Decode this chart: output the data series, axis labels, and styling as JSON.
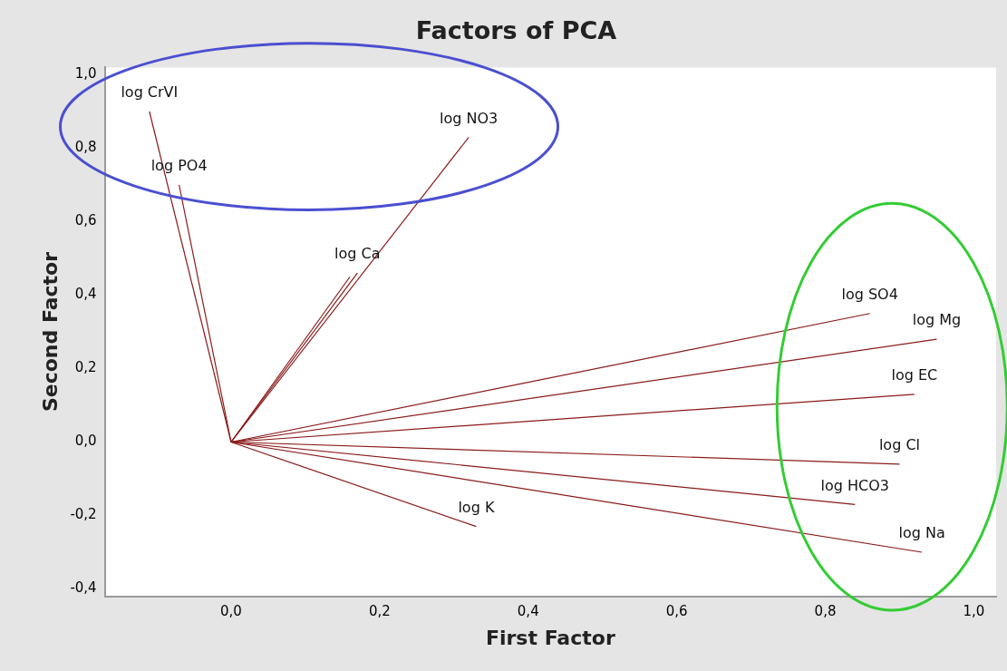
{
  "chart_data": {
    "type": "line",
    "title": "Factors of PCA",
    "xlabel": "First Factor",
    "ylabel": "Second Factor",
    "xlim": [
      -0.17,
      1.03
    ],
    "ylim": [
      -0.42,
      1.02
    ],
    "xticks": [
      {
        "value": 0,
        "label": "0,0"
      },
      {
        "value": 0.2,
        "label": "0,2"
      },
      {
        "value": 0.4,
        "label": "0,4"
      },
      {
        "value": 0.6,
        "label": "0,6"
      },
      {
        "value": 0.8,
        "label": "0,8"
      },
      {
        "value": 1,
        "label": "1,0"
      }
    ],
    "yticks": [
      {
        "value": -0.4,
        "label": "-0,4"
      },
      {
        "value": -0.2,
        "label": "-0,2"
      },
      {
        "value": 0,
        "label": "0,0"
      },
      {
        "value": 0.2,
        "label": "0,2"
      },
      {
        "value": 0.4,
        "label": "0,4"
      },
      {
        "value": 0.6,
        "label": "0,6"
      },
      {
        "value": 0.8,
        "label": "0,8"
      },
      {
        "value": 1,
        "label": "1,0"
      }
    ],
    "grid": false,
    "legend": false,
    "marker": "none",
    "line_style": "solid",
    "series": [
      {
        "name": "log CrVI",
        "color": "#8b1a1a",
        "x": [
          0,
          -0.11
        ],
        "values": [
          0,
          0.9
        ]
      },
      {
        "name": "log PO4",
        "color": "#8b1a1a",
        "x": [
          0,
          -0.07
        ],
        "values": [
          0,
          0.7
        ]
      },
      {
        "name": "log NO3",
        "color": "#8b1a1a",
        "x": [
          0,
          0.32
        ],
        "values": [
          0,
          0.83
        ]
      },
      {
        "name": "log Ca",
        "color": "#8b1a1a",
        "x": [
          0,
          0.17
        ],
        "values": [
          0,
          0.46
        ]
      },
      {
        "color": "#8b1a1a",
        "x": [
          0,
          0.16
        ],
        "values": [
          0,
          0.45
        ]
      },
      {
        "name": "log SO4",
        "color": "#8b1a1a",
        "x": [
          0,
          0.86
        ],
        "values": [
          0,
          0.35
        ]
      },
      {
        "name": "log Mg",
        "color": "#8b1a1a",
        "x": [
          0,
          0.95
        ],
        "values": [
          0,
          0.28
        ]
      },
      {
        "name": "log EC",
        "color": "#8b1a1a",
        "x": [
          0,
          0.92
        ],
        "values": [
          0,
          0.13
        ]
      },
      {
        "name": "log Cl",
        "color": "#8b1a1a",
        "x": [
          0,
          0.9
        ],
        "values": [
          0,
          -0.06
        ]
      },
      {
        "name": "log HCO3",
        "color": "#8b1a1a",
        "x": [
          0,
          0.84
        ],
        "values": [
          0,
          -0.17
        ]
      },
      {
        "name": "log Na",
        "color": "#8b1a1a",
        "x": [
          0,
          0.93
        ],
        "values": [
          0,
          -0.3
        ]
      },
      {
        "name": "log K",
        "color": "#8b1a1a",
        "x": [
          0,
          0.33
        ],
        "values": [
          0,
          -0.23
        ]
      }
    ]
  }
}
